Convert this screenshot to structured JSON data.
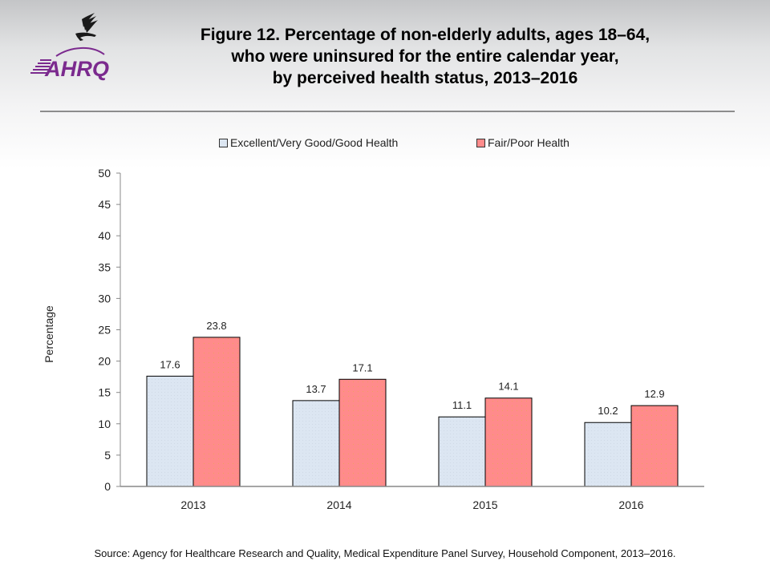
{
  "header": {
    "logo_text": "AHRQ",
    "title_lines": [
      "Figure 12. Percentage of non-elderly adults, ages 18–64,",
      "who were uninsured for the entire calendar year,",
      "by perceived health status, 2013–2016"
    ]
  },
  "colors": {
    "series_good": "#dce6f2",
    "series_poor": "#ff8b8b",
    "logo_purple": "#7b2a8e"
  },
  "chart_data": {
    "type": "bar",
    "title": "Figure 12. Percentage of non-elderly adults, ages 18–64, who were uninsured for the entire calendar year, by perceived health status, 2013–2016",
    "categories": [
      "2013",
      "2014",
      "2015",
      "2016"
    ],
    "series": [
      {
        "name": "Excellent/Very Good/Good Health",
        "values": [
          17.6,
          13.7,
          11.1,
          10.2
        ],
        "labels": [
          "17.6",
          "13.7",
          "11.1",
          "10.2"
        ]
      },
      {
        "name": "Fair/Poor Health",
        "values": [
          23.8,
          17.1,
          14.1,
          12.9
        ],
        "labels": [
          "23.8",
          "17.1",
          "14.1",
          "12.9"
        ]
      }
    ],
    "xlabel": "",
    "ylabel": "Percentage",
    "ylim": [
      0,
      50
    ],
    "yticks": [
      0,
      5,
      10,
      15,
      20,
      25,
      30,
      35,
      40,
      45,
      50
    ],
    "grid": false,
    "legend_position": "top-center"
  },
  "footer": {
    "source": "Source: Agency for Healthcare Research and Quality, Medical Expenditure Panel Survey, Household Component, 2013–2016."
  }
}
